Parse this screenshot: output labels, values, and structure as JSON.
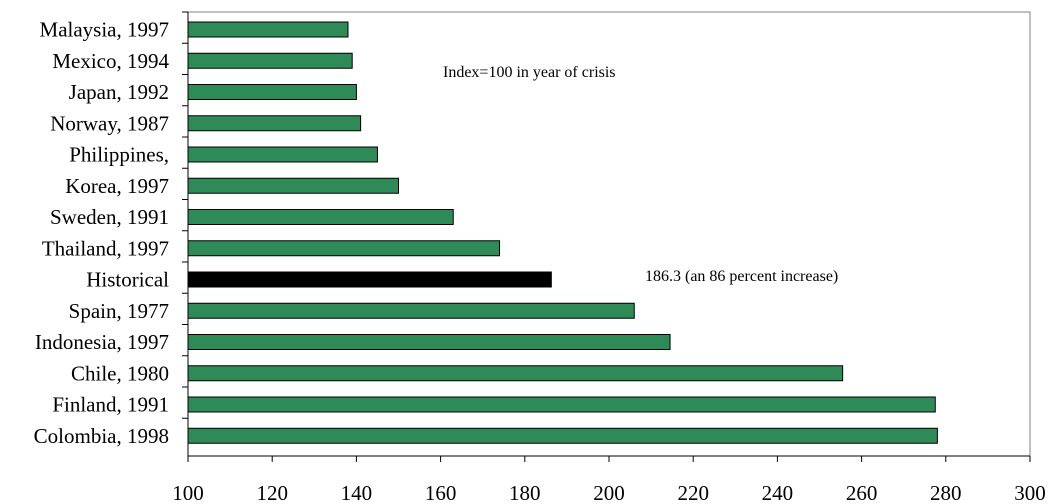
{
  "chart_data": {
    "type": "bar",
    "orientation": "horizontal",
    "categories": [
      "Malaysia, 1997",
      "Mexico, 1994",
      "Japan, 1992",
      "Norway, 1987",
      "Philippines,",
      "Korea, 1997",
      "Sweden, 1991",
      "Thailand, 1997",
      "Historical",
      "Spain, 1977",
      "Indonesia, 1997",
      "Chile, 1980",
      "Finland, 1991",
      "Colombia, 1998"
    ],
    "values": [
      138,
      139,
      140,
      141,
      145,
      150,
      163,
      174,
      186.3,
      206,
      214.5,
      255.5,
      277.5,
      278
    ],
    "highlight_category": "Historical",
    "xlim": [
      100,
      300
    ],
    "xticks": [
      100,
      120,
      140,
      160,
      180,
      200,
      220,
      240,
      260,
      280,
      300
    ],
    "annotations": {
      "index_note": "Index=100 in year of crisis",
      "historical_note": "186.3 (an 86 percent increase)"
    },
    "grid": false,
    "title": "",
    "xlabel": "",
    "ylabel": ""
  },
  "colors": {
    "bar": "#2e8b57",
    "highlight": "#000000",
    "bar_border": "#000000",
    "frame": "#808080"
  }
}
